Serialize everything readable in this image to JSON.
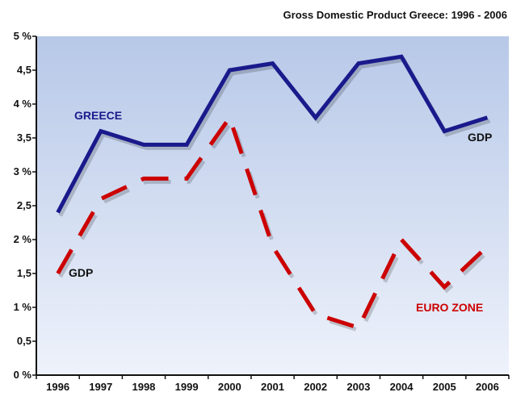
{
  "chart_data": {
    "type": "line",
    "title": "Gross Domestic Product Greece: 1996 - 2006",
    "xlabel": "",
    "ylabel": "",
    "categories": [
      "1996",
      "1997",
      "1998",
      "1999",
      "2000",
      "2001",
      "2002",
      "2003",
      "2004",
      "2005",
      "2006"
    ],
    "ylim": [
      0,
      5
    ],
    "ytick_values": [
      0,
      0.5,
      1,
      1.5,
      2,
      2.5,
      3,
      3.5,
      4,
      4.5,
      5
    ],
    "ytick_labels": [
      "0 %",
      "0,5",
      "1 %",
      "1,5",
      "2 %",
      "2,5",
      "3 %",
      "3,5",
      "4 %",
      "4,5",
      "5 %"
    ],
    "grid": false,
    "series": [
      {
        "name": "GREECE",
        "color": "#1a1a8c",
        "style": "solid",
        "values": [
          2.4,
          3.6,
          3.4,
          3.4,
          4.5,
          4.6,
          3.8,
          4.6,
          4.7,
          3.6,
          3.8
        ]
      },
      {
        "name": "EURO ZONE",
        "color": "#cc0000",
        "style": "dashed",
        "values": [
          1.5,
          2.6,
          2.9,
          2.9,
          3.8,
          1.9,
          0.9,
          0.7,
          2.0,
          1.3,
          1.9
        ]
      }
    ],
    "annotations": [
      {
        "text": "GREECE",
        "color": "#1a1a8c",
        "series": 0
      },
      {
        "text": "GDP",
        "color": "#111111",
        "series": 0
      },
      {
        "text": "GDP",
        "color": "#111111",
        "series": 1
      },
      {
        "text": "EURO ZONE",
        "color": "#cc0000",
        "series": 1
      }
    ]
  }
}
